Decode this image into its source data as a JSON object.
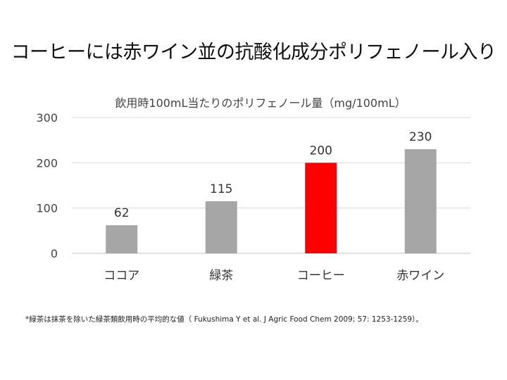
{
  "slide_title": "コーヒーには赤ワイン並の抗酸化成分ポリフェノール入り",
  "chart_data": {
    "type": "bar",
    "title": "飲用時100mL当たりのポリフェノール量（mg/100mL）",
    "categories": [
      "ココア",
      "緑茶",
      "コーヒー",
      "赤ワイン"
    ],
    "values": [
      62,
      115,
      200,
      230
    ],
    "data_labels": [
      "62",
      "115",
      "200",
      "230"
    ],
    "ylim": [
      0,
      300
    ],
    "yticks": [
      "0",
      "100",
      "200",
      "300"
    ],
    "xlabel": "",
    "ylabel": "",
    "grid": true,
    "legend": "none",
    "colors": [
      "#a6a6a6",
      "#a6a6a6",
      "#ff0000",
      "#a6a6a6"
    ]
  },
  "footnote": "*緑茶は抹茶を除いた緑茶類飲用時の平均的な値（ Fukushima Y et al. J Agric Food Chem 2009; 57: 1253-1259）。"
}
